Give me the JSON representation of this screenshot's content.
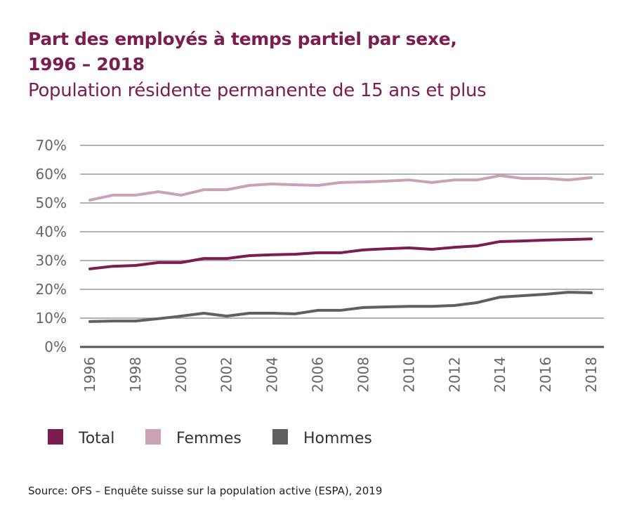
{
  "title": "Part des employés à temps partiel par sexe, 1996 – 2018",
  "title_line1": "Part des employés à temps partiel par sexe,",
  "title_line2": "1996 – 2018",
  "subtitle": "Population résidente permanente de 15 ans et plus",
  "source": "Source: OFS – Enquête suisse sur la population active (ESPA), 2019",
  "chart_data": {
    "type": "line",
    "title": "Part des employés à temps partiel par sexe, 1996 – 2018",
    "subtitle": "Population résidente permanente de 15 ans et plus",
    "x": [
      1996,
      1997,
      1998,
      1999,
      2000,
      2001,
      2002,
      2003,
      2004,
      2005,
      2006,
      2007,
      2008,
      2009,
      2010,
      2011,
      2012,
      2013,
      2014,
      2015,
      2016,
      2017,
      2018
    ],
    "xticks": [
      "1996",
      "1998",
      "2000",
      "2002",
      "2004",
      "2006",
      "2008",
      "2010",
      "2012",
      "2014",
      "2016",
      "2018"
    ],
    "yticks": [
      "0%",
      "10%",
      "20%",
      "30%",
      "40%",
      "50%",
      "60%",
      "70%"
    ],
    "ylim": [
      0,
      70
    ],
    "grid": true,
    "legend_position": "bottom",
    "series": [
      {
        "name": "Total",
        "color": "#7b1d4e",
        "values": [
          27.1,
          28.0,
          28.3,
          29.3,
          29.3,
          30.7,
          30.7,
          31.7,
          32.0,
          32.2,
          32.7,
          32.7,
          33.7,
          34.1,
          34.4,
          33.9,
          34.6,
          35.1,
          36.6,
          36.8,
          37.1,
          37.3,
          37.5
        ]
      },
      {
        "name": "Femmes",
        "color": "#c9a2b6",
        "values": [
          51.0,
          52.7,
          52.7,
          53.9,
          52.7,
          54.6,
          54.6,
          56.1,
          56.6,
          56.3,
          56.1,
          57.1,
          57.3,
          57.6,
          58.0,
          57.1,
          58.0,
          58.0,
          59.5,
          58.5,
          58.5,
          58.0,
          58.8
        ]
      },
      {
        "name": "Hommes",
        "color": "#606060",
        "values": [
          8.8,
          9.0,
          9.0,
          9.8,
          10.7,
          11.7,
          10.7,
          11.7,
          11.7,
          11.5,
          12.7,
          12.7,
          13.7,
          13.9,
          14.1,
          14.1,
          14.4,
          15.4,
          17.3,
          17.8,
          18.3,
          19.0,
          18.8
        ]
      }
    ]
  }
}
